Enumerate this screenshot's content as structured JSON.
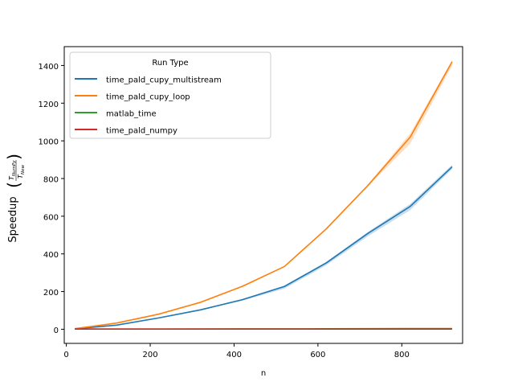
{
  "chart_data": {
    "type": "line",
    "title": "",
    "xlabel": "n",
    "ylabel": "Speedup",
    "ylabel_fraction": {
      "numerator_main": "T",
      "numerator_sub": "NumPy",
      "denominator_main": "T",
      "denominator_sub": "New"
    },
    "xlim": [
      -5,
      945
    ],
    "ylim": [
      -75,
      1500
    ],
    "xticks": [
      0,
      200,
      400,
      600,
      800
    ],
    "yticks": [
      0,
      200,
      400,
      600,
      800,
      1000,
      1200,
      1400
    ],
    "legend": {
      "title": "Run Type",
      "placement": "top-left"
    },
    "x": [
      20,
      120,
      220,
      320,
      420,
      520,
      620,
      720,
      820,
      920
    ],
    "series": [
      {
        "name": "time_pald_cupy_multistream",
        "color": "#1f77b4",
        "values": [
          2,
          22,
          60,
          103,
          157,
          227,
          352,
          510,
          652,
          862
        ],
        "lower": [
          2,
          20,
          57,
          100,
          152,
          215,
          340,
          495,
          633,
          850
        ],
        "upper": [
          3,
          24,
          63,
          106,
          161,
          232,
          358,
          518,
          665,
          873
        ]
      },
      {
        "name": "time_pald_cupy_loop",
        "color": "#ff7f0e",
        "values": [
          3,
          33,
          80,
          143,
          228,
          333,
          533,
          765,
          1020,
          1420
        ],
        "lower": [
          3,
          31,
          78,
          140,
          225,
          330,
          528,
          760,
          985,
          1400
        ],
        "upper": [
          4,
          35,
          83,
          146,
          231,
          336,
          538,
          770,
          1040,
          1428
        ]
      },
      {
        "name": "matlab_time",
        "color": "#2ca02c",
        "values": [
          1,
          1,
          1,
          1.5,
          2,
          2,
          2.5,
          3,
          3.5,
          4
        ],
        "lower": null,
        "upper": null
      },
      {
        "name": "time_pald_numpy",
        "color": "#d62728",
        "values": [
          1,
          1,
          1,
          1,
          1,
          1,
          1,
          1,
          1,
          1
        ],
        "lower": null,
        "upper": null
      }
    ]
  }
}
